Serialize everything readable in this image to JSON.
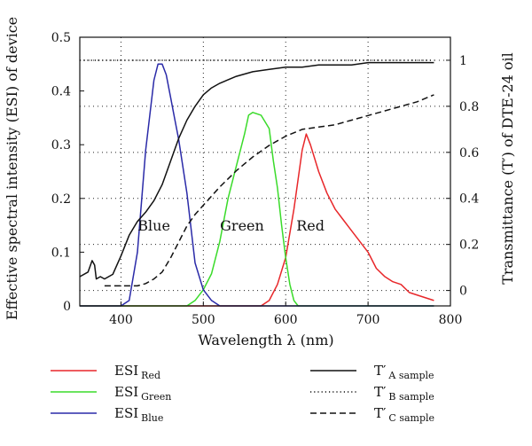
{
  "chart_data": {
    "type": "line",
    "xlabel": "Wavelength λ (nm)",
    "ylabel_left": "Effective spectral intensity (ESI) of device",
    "ylabel_right": "Transmittance (T′) of DTE-24 oil",
    "xlim": [
      350,
      800
    ],
    "ylim_left": [
      0,
      0.5
    ],
    "ylim_right": [
      -0.067,
      1.1
    ],
    "x_ticks": [
      400,
      500,
      600,
      700,
      800
    ],
    "y_ticks_left": [
      0,
      0.1,
      0.2,
      0.3,
      0.4,
      0.5
    ],
    "y_ticks_right": [
      0,
      0.2,
      0.4,
      0.6,
      0.8,
      1
    ],
    "grid": "dotted",
    "legend_position": "bottom",
    "inline_labels": [
      {
        "text": "Blue",
        "x": 440,
        "y": 0.14
      },
      {
        "text": "Green",
        "x": 547,
        "y": 0.14
      },
      {
        "text": "Red",
        "x": 630,
        "y": 0.14
      }
    ],
    "series": [
      {
        "key": "esi_red",
        "legend_main": "ESI",
        "legend_sub": "Red",
        "axis": "left",
        "color": "#e8272a",
        "dash": "solid",
        "x": [
          350,
          570,
          580,
          590,
          600,
          610,
          620,
          625,
          630,
          640,
          650,
          660,
          670,
          680,
          690,
          700,
          710,
          720,
          730,
          740,
          750,
          760,
          770,
          780
        ],
        "y": [
          0,
          0,
          0.01,
          0.04,
          0.09,
          0.18,
          0.29,
          0.32,
          0.3,
          0.25,
          0.21,
          0.18,
          0.16,
          0.14,
          0.12,
          0.1,
          0.07,
          0.055,
          0.045,
          0.04,
          0.025,
          0.02,
          0.015,
          0.01
        ]
      },
      {
        "key": "esi_green",
        "legend_main": "ESI",
        "legend_sub": "Green",
        "axis": "left",
        "color": "#3adb2a",
        "dash": "solid",
        "x": [
          350,
          480,
          490,
          500,
          510,
          520,
          530,
          540,
          550,
          555,
          560,
          570,
          580,
          585,
          590,
          595,
          600,
          605,
          610,
          615,
          620,
          780
        ],
        "y": [
          0,
          0,
          0.01,
          0.03,
          0.06,
          0.12,
          0.2,
          0.26,
          0.32,
          0.355,
          0.36,
          0.355,
          0.33,
          0.27,
          0.22,
          0.15,
          0.09,
          0.04,
          0.01,
          0,
          0,
          0
        ]
      },
      {
        "key": "esi_blue",
        "legend_main": "ESI",
        "legend_sub": "Blue",
        "axis": "left",
        "color": "#2a2aa8",
        "dash": "solid",
        "x": [
          350,
          400,
          410,
          420,
          430,
          440,
          445,
          450,
          455,
          460,
          465,
          470,
          480,
          490,
          500,
          510,
          520,
          780
        ],
        "y": [
          0,
          0,
          0.01,
          0.1,
          0.29,
          0.42,
          0.45,
          0.45,
          0.43,
          0.39,
          0.35,
          0.31,
          0.21,
          0.08,
          0.03,
          0.01,
          0,
          0
        ]
      },
      {
        "key": "ta",
        "legend_main": "T′",
        "legend_sub": "A sample",
        "axis": "right",
        "color": "#111111",
        "dash": "solid",
        "x": [
          350,
          360,
          365,
          368,
          370,
          375,
          380,
          390,
          400,
          410,
          420,
          430,
          440,
          450,
          460,
          470,
          480,
          490,
          500,
          510,
          520,
          540,
          560,
          580,
          600,
          620,
          640,
          660,
          680,
          700,
          720,
          740,
          760,
          780
        ],
        "y": [
          0.06,
          0.08,
          0.13,
          0.11,
          0.05,
          0.06,
          0.05,
          0.07,
          0.15,
          0.24,
          0.3,
          0.34,
          0.39,
          0.46,
          0.56,
          0.66,
          0.74,
          0.8,
          0.85,
          0.88,
          0.9,
          0.93,
          0.95,
          0.96,
          0.97,
          0.97,
          0.98,
          0.98,
          0.98,
          0.99,
          0.99,
          0.99,
          0.99,
          0.99
        ]
      },
      {
        "key": "tb",
        "legend_main": "T′",
        "legend_sub": "B sample",
        "axis": "right",
        "color": "#111111",
        "dash": "dotted",
        "x": [
          350,
          780
        ],
        "y": [
          1,
          1
        ]
      },
      {
        "key": "tc",
        "legend_main": "T′",
        "legend_sub": "C sample",
        "axis": "right",
        "color": "#111111",
        "dash": "dashed",
        "x": [
          380,
          400,
          420,
          430,
          440,
          450,
          460,
          470,
          480,
          490,
          500,
          520,
          540,
          560,
          580,
          600,
          620,
          640,
          660,
          680,
          700,
          720,
          740,
          760,
          780
        ],
        "y": [
          0.02,
          0.02,
          0.02,
          0.03,
          0.05,
          0.08,
          0.14,
          0.21,
          0.28,
          0.33,
          0.37,
          0.45,
          0.52,
          0.58,
          0.63,
          0.67,
          0.7,
          0.71,
          0.72,
          0.74,
          0.76,
          0.78,
          0.8,
          0.82,
          0.85
        ]
      }
    ]
  }
}
